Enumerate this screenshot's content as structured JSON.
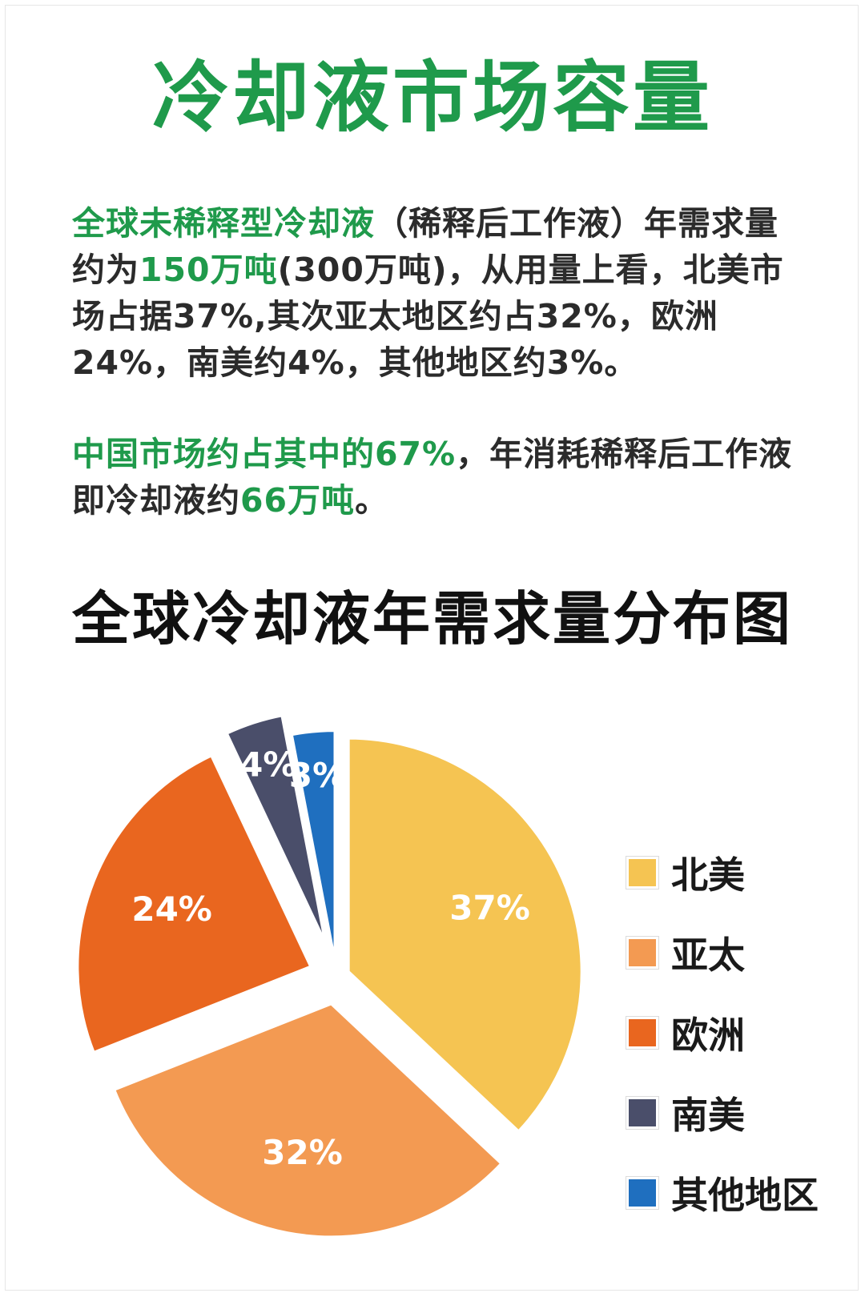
{
  "title": "冷却液市场容量",
  "paragraph1": {
    "s1": "全球未稀释型冷却液",
    "s2": "（稀释后工作液）年需求量约为",
    "s3": "150万吨",
    "s4": "(300万吨)，从用量上看，北美市场占据37%,其次亚太地区约占32%，欧洲24%，南美约4%，其他地区约3%。"
  },
  "paragraph2": {
    "s1": "中国市场约占其中的67%",
    "s2": "，年消耗稀释后工作液即冷却液约",
    "s3": "66万吨",
    "s4": "。"
  },
  "colors": {
    "accent_green": "#1f9a4b",
    "north_america": "#f5c452",
    "asia_pacific": "#f39a52",
    "europe": "#e9661f",
    "south_america": "#4a4e6a",
    "other": "#1f6fbf"
  },
  "chart_data": {
    "type": "pie",
    "title": "全球冷却液年需求量分布图",
    "categories": [
      "北美",
      "亚太",
      "欧洲",
      "南美",
      "其他地区"
    ],
    "values": [
      37,
      32,
      24,
      4,
      3
    ],
    "labels": [
      "37%",
      "32%",
      "24%",
      "4%",
      "3%"
    ],
    "colors": [
      "#f5c452",
      "#f39a52",
      "#e9661f",
      "#4a4e6a",
      "#1f6fbf"
    ],
    "legend": "right",
    "exploded": true
  }
}
